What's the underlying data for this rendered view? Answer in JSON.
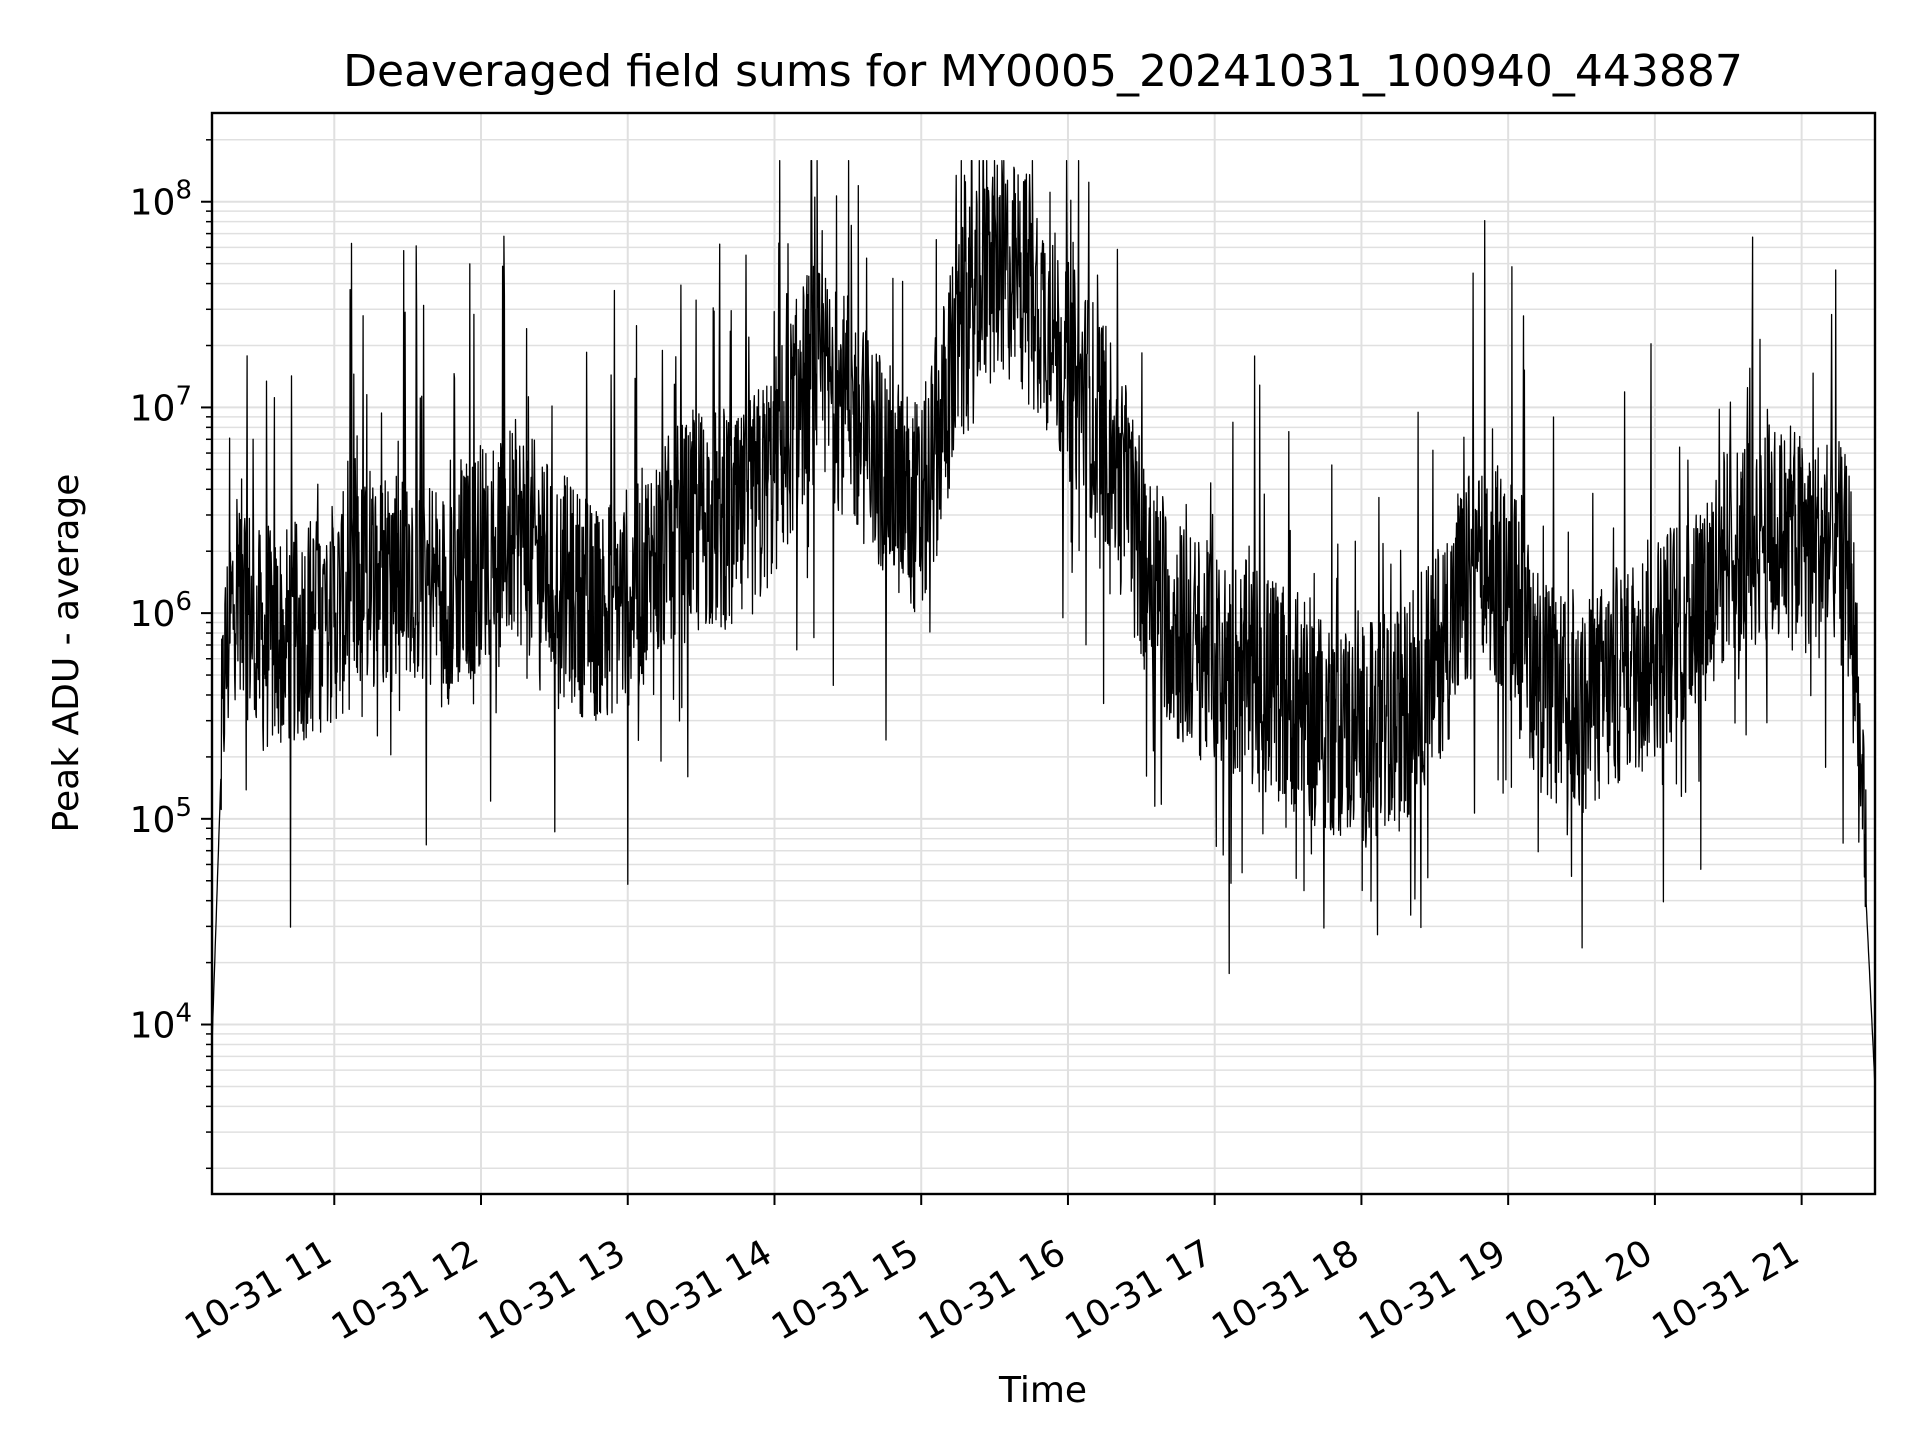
{
  "chart_data": {
    "type": "line",
    "title": "Deaveraged field sums for MY0005_20241031_100940_443887",
    "xlabel": "Time",
    "ylabel": "Peak ADU - average",
    "y_scale": "log",
    "ylim": [
      1500,
      270000000
    ],
    "xlim": [
      "2024-10-31T10:10",
      "2024-10-31T21:30"
    ],
    "grid": true,
    "line_color": "#000000",
    "grid_color": "#e0e0e0",
    "x_ticks": [
      {
        "time": "2024-10-31T11:00",
        "label": "10-31 11"
      },
      {
        "time": "2024-10-31T12:00",
        "label": "10-31 12"
      },
      {
        "time": "2024-10-31T13:00",
        "label": "10-31 13"
      },
      {
        "time": "2024-10-31T14:00",
        "label": "10-31 14"
      },
      {
        "time": "2024-10-31T15:00",
        "label": "10-31 15"
      },
      {
        "time": "2024-10-31T16:00",
        "label": "10-31 16"
      },
      {
        "time": "2024-10-31T17:00",
        "label": "10-31 17"
      },
      {
        "time": "2024-10-31T18:00",
        "label": "10-31 18"
      },
      {
        "time": "2024-10-31T19:00",
        "label": "10-31 19"
      },
      {
        "time": "2024-10-31T20:00",
        "label": "10-31 20"
      },
      {
        "time": "2024-10-31T21:00",
        "label": "10-31 21"
      }
    ],
    "y_ticks": [
      {
        "value": 10000,
        "base": "10",
        "exp": "4"
      },
      {
        "value": 100000,
        "base": "10",
        "exp": "5"
      },
      {
        "value": 1000000,
        "base": "10",
        "exp": "6"
      },
      {
        "value": 10000000,
        "base": "10",
        "exp": "7"
      },
      {
        "value": 100000000,
        "base": "10",
        "exp": "8"
      }
    ],
    "series": [
      {
        "x": [
          "2024-10-31T10:10",
          "2024-10-31T10:15",
          "2024-10-31T10:20",
          "2024-10-31T10:30",
          "2024-10-31T10:45",
          "2024-10-31T11:00",
          "2024-10-31T11:15",
          "2024-10-31T11:30",
          "2024-10-31T11:45",
          "2024-10-31T12:00",
          "2024-10-31T12:15",
          "2024-10-31T12:30",
          "2024-10-31T12:45",
          "2024-10-31T13:00",
          "2024-10-31T13:15",
          "2024-10-31T13:30",
          "2024-10-31T13:45",
          "2024-10-31T14:00",
          "2024-10-31T14:15",
          "2024-10-31T14:30",
          "2024-10-31T14:45",
          "2024-10-31T15:00",
          "2024-10-31T15:15",
          "2024-10-31T15:30",
          "2024-10-31T15:45",
          "2024-10-31T16:00",
          "2024-10-31T16:15",
          "2024-10-31T16:30",
          "2024-10-31T16:45",
          "2024-10-31T17:00",
          "2024-10-31T17:15",
          "2024-10-31T17:30",
          "2024-10-31T17:45",
          "2024-10-31T18:00",
          "2024-10-31T18:15",
          "2024-10-31T18:30",
          "2024-10-31T18:45",
          "2024-10-31T19:00",
          "2024-10-31T19:15",
          "2024-10-31T19:30",
          "2024-10-31T19:45",
          "2024-10-31T20:00",
          "2024-10-31T20:15",
          "2024-10-31T20:30",
          "2024-10-31T20:45",
          "2024-10-31T21:00",
          "2024-10-31T21:15",
          "2024-10-31T21:20",
          "2024-10-31T21:30"
        ],
        "y": [
          8000,
          500000,
          1500000,
          700000,
          800000,
          1000000,
          1500000,
          1800000,
          1200000,
          2000000,
          2500000,
          1500000,
          1000000,
          1200000,
          2000000,
          3000000,
          2500000,
          5000000,
          15000000,
          10000000,
          5000000,
          3000000,
          20000000,
          50000000,
          40000000,
          15000000,
          8000000,
          2000000,
          800000,
          600000,
          500000,
          400000,
          300000,
          250000,
          300000,
          600000,
          1500000,
          1500000,
          400000,
          300000,
          500000,
          700000,
          1000000,
          2000000,
          2500000,
          2200000,
          2000000,
          1500000,
          5000
        ]
      }
    ]
  }
}
